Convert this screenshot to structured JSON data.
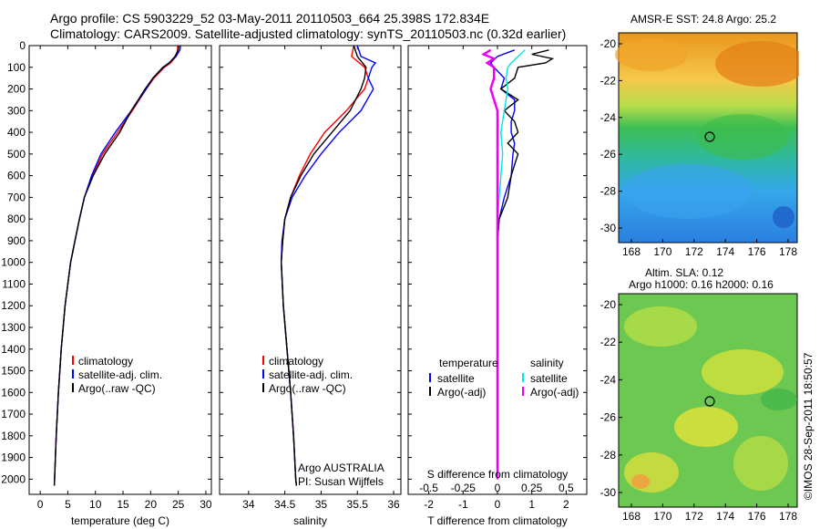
{
  "header": {
    "line1": "Argo profile: CS 5903229_52 03-May-2011 20110503_664 25.398S 172.834E",
    "line2": "Climatology: CARS2009. Satellite-adjusted climatology: synTS_20110503.nc (0.32d earlier)"
  },
  "colors": {
    "climatology": "#ff0000",
    "satellite": "#0000ff",
    "argo": "#000000",
    "sal_satellite": "#00e5e5",
    "sal_argo": "#ee00ee"
  },
  "chart_data": [
    {
      "type": "line",
      "xlabel": "temperature (deg C)",
      "ylabel": "",
      "xlim": [
        -2,
        31
      ],
      "ylim": [
        2070,
        0
      ],
      "xticks": [
        0,
        5,
        10,
        15,
        20,
        25,
        30
      ],
      "yticks": [
        0,
        100,
        200,
        300,
        400,
        500,
        600,
        700,
        800,
        900,
        1000,
        1100,
        1200,
        1300,
        1400,
        1500,
        1600,
        1700,
        1800,
        1900,
        2000
      ],
      "legend": [
        "climatology",
        "satellite-adj. clim.",
        "Argo(..raw -QC)"
      ],
      "series": [
        {
          "name": "climatology",
          "depth": [
            0,
            20,
            50,
            80,
            100,
            150,
            200,
            300,
            400,
            500,
            600,
            700,
            800,
            900,
            1000,
            1200,
            1400,
            1600,
            1800,
            2000,
            2030
          ],
          "values": [
            24.9,
            24.9,
            24.6,
            23.6,
            22.5,
            20.6,
            19.2,
            16.7,
            14.0,
            11.3,
            9.5,
            8.0,
            7.1,
            6.3,
            5.5,
            4.5,
            3.8,
            3.3,
            2.9,
            2.6,
            2.55
          ]
        },
        {
          "name": "satellite-adj. clim.",
          "depth": [
            0,
            20,
            50,
            80,
            100,
            150,
            200,
            300,
            400,
            500,
            600,
            700,
            800,
            900,
            1000,
            1200,
            1400,
            1600,
            1800,
            2000,
            2030
          ],
          "values": [
            25.4,
            25.3,
            24.6,
            23.3,
            22.3,
            20.4,
            19.2,
            16.5,
            13.6,
            11.0,
            9.3,
            8.0,
            7.1,
            6.3,
            5.5,
            4.5,
            3.8,
            3.3,
            2.9,
            2.6,
            2.55
          ]
        },
        {
          "name": "Argo(..raw -QC)",
          "depth": [
            0,
            20,
            50,
            80,
            100,
            150,
            200,
            300,
            400,
            500,
            600,
            700,
            800,
            900,
            1000,
            1200,
            1400,
            1600,
            1800,
            2000,
            2030
          ],
          "values": [
            25.1,
            25.0,
            24.4,
            23.4,
            22.2,
            20.4,
            19.0,
            16.5,
            14.4,
            11.7,
            9.6,
            8.0,
            7.1,
            6.3,
            5.5,
            4.5,
            3.8,
            3.3,
            2.9,
            2.6,
            2.55
          ]
        }
      ]
    },
    {
      "type": "line",
      "xlabel": "salinity",
      "ylabel": "",
      "xlim": [
        33.6,
        36.1
      ],
      "ylim": [
        2070,
        0
      ],
      "xticks": [
        34,
        34.5,
        35,
        35.5,
        36
      ],
      "legend": [
        "climatology",
        "satellite-adj. clim.",
        "Argo(..raw -QC)"
      ],
      "annotations": [
        "Argo AUSTRALIA",
        "PI: Susan Wijffels"
      ],
      "series": [
        {
          "name": "climatology",
          "depth": [
            0,
            50,
            100,
            150,
            200,
            300,
            400,
            500,
            600,
            700,
            800,
            900,
            1000,
            1200,
            1400,
            1600,
            1800,
            2000,
            2030
          ],
          "values": [
            35.45,
            35.42,
            35.6,
            35.65,
            35.6,
            35.35,
            35.05,
            34.85,
            34.7,
            34.58,
            34.5,
            34.47,
            34.45,
            34.48,
            34.53,
            34.58,
            34.62,
            34.65,
            34.66
          ]
        },
        {
          "name": "satellite-adj. clim.",
          "depth": [
            0,
            50,
            80,
            100,
            150,
            200,
            300,
            400,
            500,
            600,
            700,
            800,
            900,
            1000,
            1200,
            1400,
            1600,
            1800,
            2000,
            2030
          ],
          "values": [
            35.5,
            35.55,
            35.75,
            35.7,
            35.65,
            35.72,
            35.55,
            35.25,
            35.0,
            34.78,
            34.6,
            34.5,
            34.46,
            34.45,
            34.48,
            34.53,
            34.58,
            34.62,
            34.65,
            34.66
          ]
        },
        {
          "name": "Argo(..raw -QC)",
          "depth": [
            0,
            50,
            100,
            150,
            200,
            300,
            400,
            500,
            600,
            700,
            800,
            900,
            1000,
            1200,
            1400,
            1600,
            1800,
            2000,
            2030
          ],
          "values": [
            35.45,
            35.5,
            35.62,
            35.6,
            35.55,
            35.4,
            35.15,
            34.9,
            34.72,
            34.58,
            34.5,
            34.47,
            34.45,
            34.48,
            34.53,
            34.58,
            34.62,
            34.65,
            34.66
          ]
        }
      ]
    },
    {
      "type": "line",
      "xlabel": "T difference from climatology",
      "title2": "S difference from climatology",
      "xlim": [
        -2.6,
        2.6
      ],
      "ylim": [
        2070,
        0
      ],
      "xticks": [
        -2,
        -1,
        0,
        1,
        2
      ],
      "xticks_top": [
        "-0.5",
        "-0.25",
        "0",
        "0.25",
        "0.5"
      ],
      "legend_left_title": "temperature",
      "legend_right_title": "salinity",
      "legend_left": [
        "satellite",
        "Argo(-adj)"
      ],
      "legend_right": [
        "satellite",
        "Argo(-adj)"
      ],
      "series": [
        {
          "name": "satellite",
          "depth": [
            20,
            50,
            80,
            100,
            150,
            200,
            250,
            300,
            350,
            400,
            450,
            500,
            600,
            700,
            800,
            900,
            1000,
            1200,
            1500,
            2000
          ],
          "values": [
            0.5,
            0.0,
            -0.2,
            -0.1,
            0.2,
            0.1,
            0.5,
            0.5,
            0.4,
            0.4,
            0.5,
            0.45,
            0.4,
            0.2,
            0.05,
            0.0,
            0.0,
            0.0,
            0.0,
            0.0
          ]
        },
        {
          "name": "Argo(-adj)",
          "depth": [
            20,
            40,
            60,
            80,
            100,
            150,
            200,
            250,
            300,
            350,
            400,
            450,
            500,
            550,
            600,
            700,
            800,
            900,
            1000,
            1200,
            1500,
            2000
          ],
          "values": [
            1.5,
            1.0,
            1.6,
            1.4,
            0.6,
            0.5,
            0.1,
            0.6,
            0.2,
            0.5,
            0.6,
            0.3,
            0.6,
            0.5,
            0.4,
            0.3,
            0.05,
            0.0,
            0.0,
            0.0,
            0.0,
            0.0
          ]
        },
        {
          "name": "satellite",
          "depth": [
            20,
            50,
            80,
            100,
            150,
            200,
            300,
            400,
            500,
            600,
            700,
            800,
            900,
            1000,
            1100,
            1200,
            1500,
            2000
          ],
          "values": [
            0.8,
            0.6,
            0.4,
            0.3,
            0.25,
            0.3,
            0.2,
            0.1,
            0.15,
            0.1,
            0.05,
            0.0,
            0.0,
            0.0,
            0.0,
            0.0,
            0.0,
            0.0
          ]
        },
        {
          "name": "Argo(-adj)",
          "depth": [
            20,
            40,
            60,
            80,
            100,
            150,
            200,
            250,
            300,
            400,
            500,
            600,
            800,
            1000,
            1200,
            1500,
            2000
          ],
          "values": [
            -0.2,
            -0.4,
            -0.1,
            -0.3,
            -0.1,
            -0.1,
            -0.2,
            -0.1,
            0.0,
            0.0,
            0.0,
            0.0,
            0.0,
            0.0,
            0.0,
            0.0,
            0.0
          ]
        }
      ]
    }
  ],
  "map_top": {
    "title": "AMSR-E SST: 24.8 Argo: 25.2",
    "xticks": [
      "168",
      "170",
      "172",
      "174",
      "176",
      "178"
    ],
    "yticks": [
      "-20",
      "-22",
      "-24",
      "-26",
      "-28",
      "-30"
    ]
  },
  "map_bottom": {
    "title1": "Altim. SLA: 0.12",
    "title2": "Argo h1000: 0.16 h2000: 0.16",
    "xticks": [
      "168",
      "170",
      "172",
      "174",
      "176",
      "178"
    ],
    "yticks": [
      "-20",
      "-22",
      "-24",
      "-26",
      "-28",
      "-30"
    ]
  },
  "credit": "©IMOS 28-Sep-2011 18:50:57"
}
